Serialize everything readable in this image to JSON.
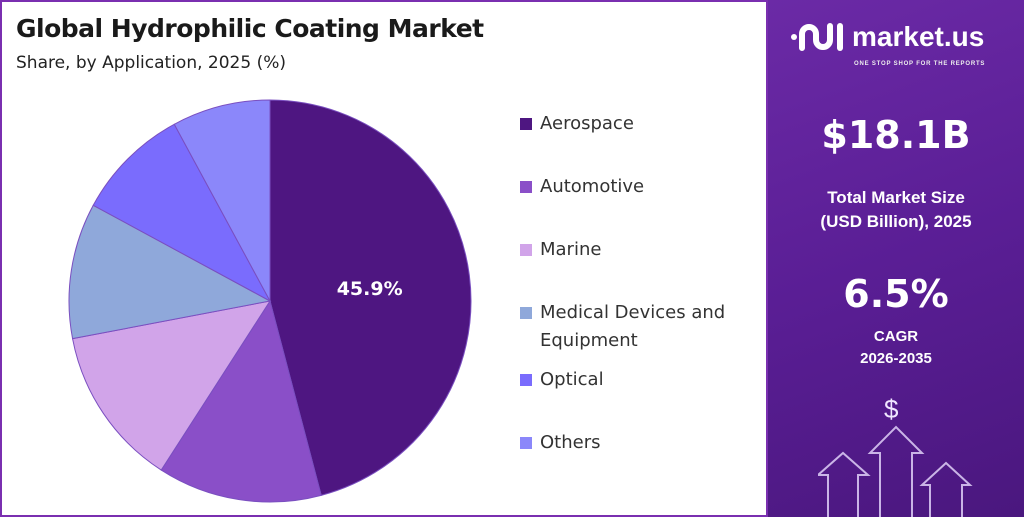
{
  "chart_data": {
    "type": "pie",
    "title": "Global Hydrophilic Coating Market",
    "subtitle": "Share, by Application, 2025 (%)",
    "categories": [
      "Aerospace",
      "Automotive",
      "Marine",
      "Medical Devices and Equipment",
      "Optical",
      "Others"
    ],
    "values": [
      45.9,
      13.2,
      12.9,
      10.9,
      9.2,
      7.9
    ],
    "colors": [
      "#4e1681",
      "#8a4fc8",
      "#d1a4e9",
      "#8fa8da",
      "#7a6cfd",
      "#8b87fa"
    ],
    "data_labels": [
      "45.9%",
      "",
      "",
      "",
      "",
      ""
    ],
    "legend_position": "right"
  },
  "brand": {
    "name": "market.us",
    "tagline": "ONE STOP SHOP FOR THE REPORTS"
  },
  "stats": {
    "market_size": "$18.1B",
    "market_size_label_1": "Total Market Size",
    "market_size_label_2": "(USD Billion), 2025",
    "cagr": "6.5%",
    "cagr_label_1": "CAGR",
    "cagr_label_2": "2026-2035"
  },
  "dollar_symbol": "$"
}
